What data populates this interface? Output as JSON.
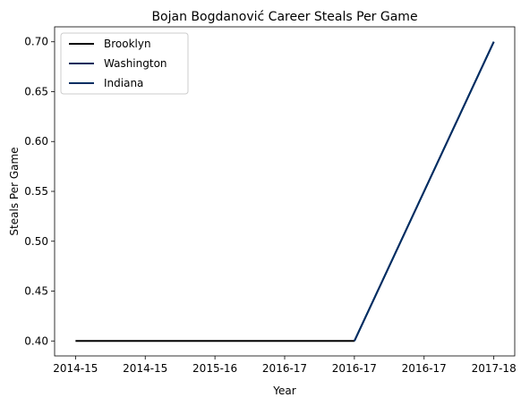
{
  "chart_data": {
    "type": "line",
    "title": "Bojan Bogdanović Career Steals Per Game",
    "xlabel": "Year",
    "ylabel": "Steals Per Game",
    "categories": [
      "2014-15",
      "2014-15",
      "2015-16",
      "2016-17",
      "2016-17",
      "2016-17",
      "2017-18"
    ],
    "ylim": [
      0.385,
      0.715
    ],
    "yticks": [
      0.4,
      0.45,
      0.5,
      0.55,
      0.6,
      0.65,
      0.7
    ],
    "ytick_labels": [
      "0.40",
      "0.45",
      "0.50",
      "0.55",
      "0.60",
      "0.65",
      "0.70"
    ],
    "grid": false,
    "legend_position": "upper-left",
    "series": [
      {
        "name": "Brooklyn",
        "color": "#000000",
        "points": [
          [
            0,
            0.4
          ],
          [
            4,
            0.4
          ]
        ]
      },
      {
        "name": "Washington",
        "color": "#002B5C",
        "points": [
          [
            4,
            0.4
          ],
          [
            6,
            0.7
          ]
        ]
      },
      {
        "name": "Indiana",
        "color": "#002D62",
        "points": [
          [
            4,
            0.4
          ],
          [
            6,
            0.7
          ]
        ]
      }
    ]
  }
}
